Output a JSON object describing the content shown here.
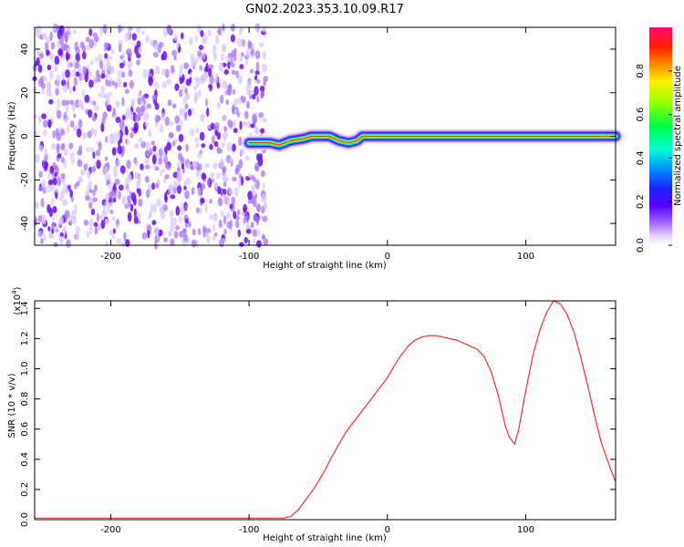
{
  "title": "GN02.2023.353.10.09.R17",
  "chart_data": [
    {
      "type": "heatmap",
      "xlabel": "Height of straight line (km)",
      "ylabel": "Frequency (Hz)",
      "xlim": [
        -255,
        165
      ],
      "ylim": [
        -50,
        50
      ],
      "x_ticks": [
        -200,
        -100,
        0,
        100
      ],
      "x_tick_labels": [
        "-200",
        "-100",
        "0",
        "100"
      ],
      "y_ticks": [
        -40,
        -20,
        0,
        20,
        40
      ],
      "y_tick_labels": [
        "-40",
        "-20",
        "0",
        "20",
        "40"
      ],
      "noise_region_x": [
        -255,
        -88
      ],
      "signal_ridge": [
        [
          -100,
          -3
        ],
        [
          -92,
          -3
        ],
        [
          -85,
          -3
        ],
        [
          -78,
          -4
        ],
        [
          -70,
          -2
        ],
        [
          -60,
          -1
        ],
        [
          -55,
          0
        ],
        [
          -48,
          0
        ],
        [
          -42,
          0
        ],
        [
          -35,
          -2
        ],
        [
          -28,
          -3
        ],
        [
          -22,
          -2
        ],
        [
          -18,
          0
        ],
        [
          0,
          0
        ],
        [
          60,
          0
        ],
        [
          165,
          0
        ]
      ],
      "colorbar": {
        "label": "Normalized spectral amplitude",
        "ticks": [
          0.0,
          0.2,
          0.4,
          0.6,
          0.8
        ],
        "tick_labels": [
          "0.0",
          "0.2",
          "0.4",
          "0.6",
          "0.8"
        ],
        "range": [
          0,
          1
        ],
        "colormap": "rainbow"
      }
    },
    {
      "type": "line",
      "xlabel": "Height of straight line (km)",
      "ylabel": "SNR (10 * v/v)",
      "y_multiplier_label": "(x10",
      "y_multiplier_exp": "4",
      "xlim": [
        -255,
        165
      ],
      "ylim": [
        0,
        1.45
      ],
      "x_ticks": [
        -200,
        -100,
        0,
        100
      ],
      "x_tick_labels": [
        "-200",
        "-100",
        "0",
        "100"
      ],
      "y_ticks": [
        0.0,
        0.2,
        0.4,
        0.6,
        0.8,
        1.0,
        1.2,
        1.4
      ],
      "y_tick_labels": [
        "0.0",
        "0.2",
        "0.4",
        "0.6",
        "0.8",
        "1.0",
        "1.2",
        "1.4"
      ],
      "series": [
        {
          "color": "#e8322a",
          "x": [
            -255,
            -200,
            -150,
            -100,
            -75,
            -70,
            -65,
            -60,
            -55,
            -50,
            -45,
            -40,
            -35,
            -30,
            -25,
            -20,
            -15,
            -10,
            -5,
            0,
            5,
            10,
            15,
            20,
            25,
            30,
            35,
            40,
            45,
            50,
            55,
            60,
            65,
            70,
            75,
            80,
            85,
            88,
            92,
            95,
            100,
            105,
            110,
            115,
            120,
            125,
            130,
            135,
            140,
            145,
            150,
            155,
            160,
            165
          ],
          "y": [
            0.01,
            0.01,
            0.01,
            0.01,
            0.01,
            0.02,
            0.06,
            0.12,
            0.18,
            0.25,
            0.33,
            0.42,
            0.5,
            0.58,
            0.64,
            0.7,
            0.76,
            0.82,
            0.88,
            0.94,
            1.02,
            1.09,
            1.15,
            1.19,
            1.21,
            1.22,
            1.22,
            1.21,
            1.2,
            1.19,
            1.17,
            1.15,
            1.13,
            1.08,
            0.98,
            0.83,
            0.63,
            0.55,
            0.5,
            0.6,
            0.85,
            1.08,
            1.25,
            1.37,
            1.45,
            1.43,
            1.36,
            1.24,
            1.07,
            0.88,
            0.68,
            0.5,
            0.37,
            0.25
          ]
        }
      ]
    }
  ]
}
